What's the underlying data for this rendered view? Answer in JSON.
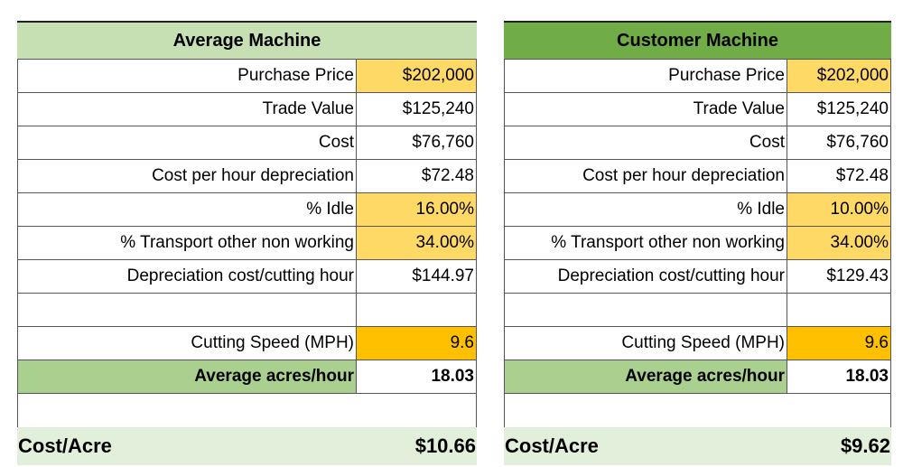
{
  "tables": [
    {
      "title": "Average Machine",
      "rows": [
        {
          "label": "Purchase Price",
          "value": "$202,000"
        },
        {
          "label": "Trade Value",
          "value": "$125,240"
        },
        {
          "label": "Cost",
          "value": "$76,760"
        },
        {
          "label": "Cost per hour depreciation",
          "value": "$72.48"
        },
        {
          "label": "% Idle",
          "value": "16.00%"
        },
        {
          "label": "% Transport other non working",
          "value": "34.00%"
        },
        {
          "label": "Depreciation cost/cutting hour",
          "value": "$144.97"
        },
        {
          "label": "",
          "value": ""
        },
        {
          "label": "Cutting Speed (MPH)",
          "value": "9.6"
        },
        {
          "label": "Average acres/hour",
          "value": "18.03"
        }
      ],
      "cost_label": "Cost/Acre",
      "cost_value": "$10.66"
    },
    {
      "title": "Customer Machine",
      "rows": [
        {
          "label": "Purchase Price",
          "value": "$202,000"
        },
        {
          "label": "Trade Value",
          "value": "$125,240"
        },
        {
          "label": "Cost",
          "value": "$76,760"
        },
        {
          "label": "Cost per hour depreciation",
          "value": "$72.48"
        },
        {
          "label": "% Idle",
          "value": "10.00%"
        },
        {
          "label": "% Transport other non working",
          "value": "34.00%"
        },
        {
          "label": "Depreciation cost/cutting hour",
          "value": "$129.43"
        },
        {
          "label": "",
          "value": ""
        },
        {
          "label": "Cutting Speed (MPH)",
          "value": "9.6"
        },
        {
          "label": "Average acres/hour",
          "value": "18.03"
        }
      ],
      "cost_label": "Cost/Acre",
      "cost_value": "$9.62"
    }
  ],
  "colors": {
    "header_light": "#c6e0b4",
    "header_dark": "#70ad47",
    "input_yellow": "#ffd966",
    "speed_orange": "#ffc000",
    "acres_green": "#a9d08e",
    "cost_row": "#e2efda"
  }
}
